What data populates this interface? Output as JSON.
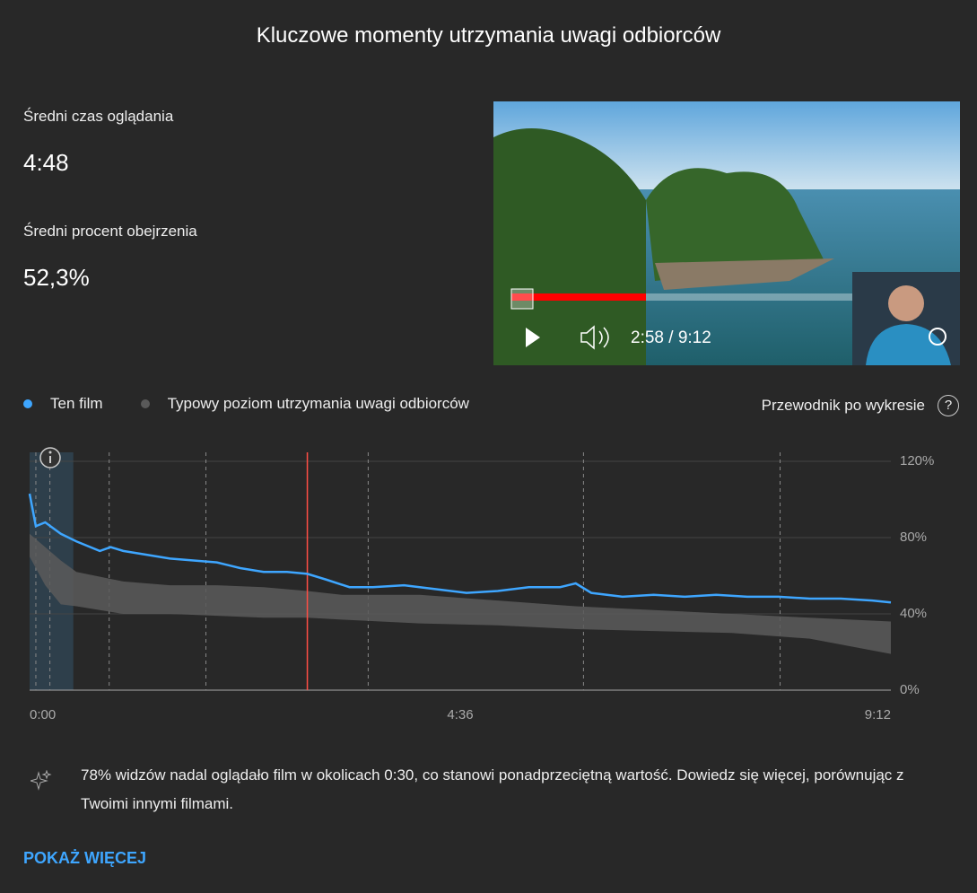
{
  "header": {
    "title": "Kluczowe momenty utrzymania uwagi odbiorców"
  },
  "stats": [
    {
      "label": "Średni czas oglądania",
      "value": "4:48"
    },
    {
      "label": "Średni procent obejrzenia",
      "value": "52,3%"
    }
  ],
  "video": {
    "time": "2:58 / 9:12"
  },
  "guide": {
    "label": "Przewodnik po wykresie",
    "icon": "?"
  },
  "chart_data": {
    "type": "line",
    "x": [
      0,
      4,
      10,
      20,
      30,
      45,
      52,
      60,
      75,
      90,
      105,
      120,
      135,
      150,
      165,
      178,
      190,
      205,
      220,
      240,
      260,
      280,
      300,
      320,
      340,
      350,
      360,
      380,
      400,
      420,
      440,
      460,
      480,
      500,
      520,
      540,
      552
    ],
    "series": [
      {
        "name": "Ten film",
        "color": "#3ea6ff",
        "values": [
          103,
          86,
          88,
          82,
          78,
          73,
          75,
          73,
          71,
          69,
          68,
          67,
          64,
          62,
          62,
          61,
          58,
          54,
          54,
          55,
          53,
          51,
          52,
          54,
          54,
          56,
          51,
          49,
          50,
          49,
          50,
          49,
          49,
          48,
          48,
          47,
          46
        ]
      }
    ],
    "band": {
      "name": "Typowy poziom utrzymania uwagi odbiorców",
      "color": "#5a5a5a",
      "x": [
        0,
        10,
        20,
        30,
        60,
        90,
        120,
        150,
        178,
        200,
        250,
        300,
        350,
        400,
        450,
        500,
        552
      ],
      "lower": [
        70,
        55,
        45,
        44,
        40,
        40,
        39,
        38,
        38,
        37,
        35,
        34,
        32,
        31,
        30,
        27,
        19
      ],
      "upper": [
        82,
        75,
        68,
        62,
        57,
        55,
        55,
        54,
        52,
        50,
        50,
        47,
        44,
        42,
        40,
        38,
        36
      ]
    },
    "xlim": [
      0,
      552
    ],
    "xticks": [
      {
        "value": 0,
        "label": "0:00"
      },
      {
        "value": 276,
        "label": "4:36"
      },
      {
        "value": 552,
        "label": "9:12"
      }
    ],
    "ylim": [
      0,
      120
    ],
    "yticks": [
      {
        "value": 0,
        "label": "0%"
      },
      {
        "value": 40,
        "label": "40%"
      },
      {
        "value": 80,
        "label": "80%"
      },
      {
        "value": 120,
        "label": "120%"
      }
    ],
    "grid": true,
    "key_moments": [
      4,
      13,
      51,
      113,
      217,
      355,
      481
    ],
    "highlight": [
      0,
      28
    ],
    "current_x": 178,
    "current_color": "#ff4e45"
  },
  "insight": {
    "text": "78% widzów nadal oglądało film w okolicach 0:30, co stanowi ponadprzeciętną wartość. Dowiedz się więcej, porównując z Twoimi innymi filmami."
  },
  "button": {
    "label": "POKAŻ WIĘCEJ"
  }
}
